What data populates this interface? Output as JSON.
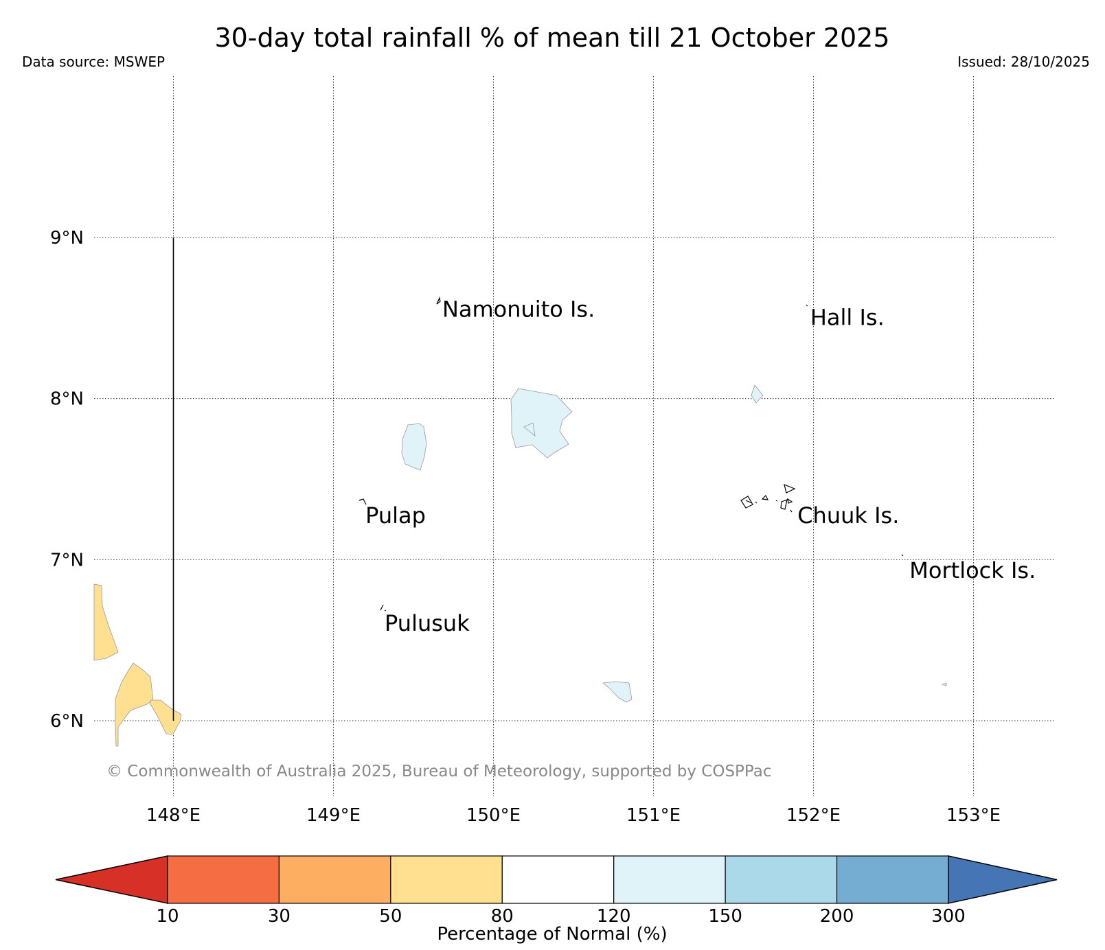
{
  "header": {
    "title": "30-day total rainfall % of mean till 21 October 2025",
    "data_source": "Data source: MSWEP",
    "issued": "Issued: 28/10/2025"
  },
  "map": {
    "lon_range": [
      147.5,
      153.5
    ],
    "lat_range": [
      5.5,
      9.9
    ],
    "lon_ticks": [
      {
        "value": 148,
        "label": "148°E"
      },
      {
        "value": 149,
        "label": "149°E"
      },
      {
        "value": 150,
        "label": "150°E"
      },
      {
        "value": 151,
        "label": "151°E"
      },
      {
        "value": 152,
        "label": "152°E"
      },
      {
        "value": 153,
        "label": "153°E"
      }
    ],
    "lat_ticks": [
      {
        "value": 9,
        "label": "9°N"
      },
      {
        "value": 8,
        "label": "8°N"
      },
      {
        "value": 7,
        "label": "7°N"
      },
      {
        "value": 6,
        "label": "6°N"
      }
    ],
    "island_labels": [
      {
        "name": "Namonuito Is.",
        "lon": 149.68,
        "lat": 8.55
      },
      {
        "name": "Hall Is.",
        "lon": 151.98,
        "lat": 8.5
      },
      {
        "name": "Pulap",
        "lon": 149.2,
        "lat": 7.27
      },
      {
        "name": "Chuuk Is.",
        "lon": 151.9,
        "lat": 7.27
      },
      {
        "name": "Mortlock Is.",
        "lon": 152.6,
        "lat": 6.93
      },
      {
        "name": "Pulusuk",
        "lon": 149.32,
        "lat": 6.6
      }
    ],
    "boundary_line": {
      "lon": 148.0,
      "lat_from": 6.0,
      "lat_to": 9.0
    },
    "copyright": "© Commonwealth of Australia 2025, Bureau of Meteorology, supported by COSPPac"
  },
  "colorbar": {
    "label": "Percentage of Normal (%)",
    "below_color": "#d73027",
    "above_color": "#4575b4",
    "bins": [
      {
        "from": 10,
        "to": 30,
        "color": "#f46d43"
      },
      {
        "from": 30,
        "to": 50,
        "color": "#fdae61"
      },
      {
        "from": 50,
        "to": 80,
        "color": "#fee090"
      },
      {
        "from": 80,
        "to": 120,
        "color": "#ffffff"
      },
      {
        "from": 120,
        "to": 150,
        "color": "#e0f3f8"
      },
      {
        "from": 150,
        "to": 200,
        "color": "#abd9e9"
      },
      {
        "from": 200,
        "to": 300,
        "color": "#74add1"
      }
    ],
    "tick_labels": [
      "10",
      "30",
      "50",
      "80",
      "120",
      "150",
      "200",
      "300"
    ]
  }
}
